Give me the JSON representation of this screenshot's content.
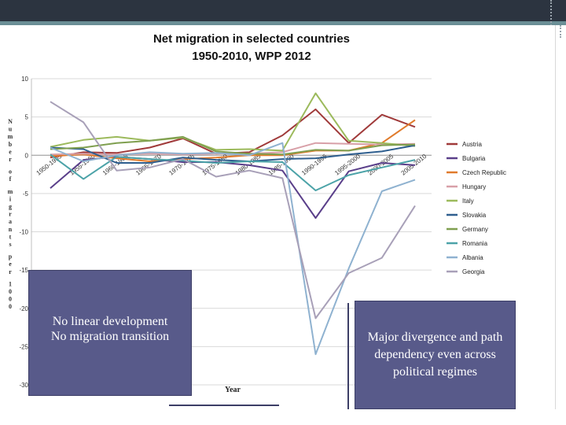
{
  "slide": {
    "callout_left_line1": "No linear development",
    "callout_left_line2": "No migration transition",
    "callout_right": "Major divergence and path dependency even across political regimes"
  },
  "chart_data": {
    "type": "line",
    "title_line1": "Net migration in selected countries",
    "title_line2": "1950-2010, WPP 2012",
    "xlabel": "Year",
    "ylabel": "Number of migrants per 1000",
    "ylim": [
      -30,
      10
    ],
    "yticks": [
      10,
      5,
      0,
      -5,
      -10,
      -15,
      -20,
      -25,
      -30
    ],
    "categories": [
      "1950-1955",
      "1955-1960",
      "1960-1965",
      "1965-1970",
      "1970-1975",
      "1975-1980",
      "1980-1985",
      "1985-1990",
      "1990-1995",
      "1995-2000",
      "2000-2005",
      "2005-2010"
    ],
    "legend_position": "right",
    "grid": true,
    "series": [
      {
        "name": "Austria",
        "color": "#a03a3a",
        "values": [
          -0.3,
          0.4,
          0.3,
          1.0,
          2.2,
          0.2,
          0.4,
          2.6,
          6.0,
          1.6,
          5.3,
          3.7
        ]
      },
      {
        "name": "Bulgaria",
        "color": "#5a3f8a",
        "values": [
          -4.3,
          -0.6,
          -0.2,
          -0.5,
          -0.9,
          -0.9,
          -1.3,
          -2.0,
          -8.2,
          -2.1,
          -1.0,
          -1.3
        ]
      },
      {
        "name": "Czech Republic",
        "color": "#e07b2c",
        "values": [
          -0.1,
          0.1,
          -0.4,
          -0.8,
          -0.5,
          -0.3,
          0.0,
          0.0,
          0.6,
          0.6,
          1.6,
          4.6
        ]
      },
      {
        "name": "Hungary",
        "color": "#d8a0a8",
        "values": [
          0.1,
          0.2,
          0.1,
          0.2,
          0.1,
          0.2,
          0.2,
          0.4,
          1.6,
          1.5,
          1.4,
          1.5
        ]
      },
      {
        "name": "Italy",
        "color": "#9cba5c",
        "values": [
          1.1,
          2.0,
          2.4,
          1.9,
          2.3,
          0.7,
          0.8,
          0.6,
          8.1,
          1.9,
          1.6,
          1.2
        ]
      },
      {
        "name": "Slovakia",
        "color": "#2f5f8f",
        "values": [
          1.0,
          0.8,
          -1.0,
          -1.0,
          -0.3,
          -0.6,
          -0.8,
          -0.5,
          -0.4,
          0.1,
          0.5,
          1.3
        ]
      },
      {
        "name": "Germany",
        "color": "#7f9f4f",
        "values": [
          0.8,
          1.0,
          1.6,
          1.9,
          2.4,
          0.5,
          0.2,
          0.1,
          0.7,
          0.6,
          1.3,
          1.4
        ]
      },
      {
        "name": "Romania",
        "color": "#4ca3a8",
        "values": [
          0.1,
          -3.1,
          -0.2,
          -0.5,
          -0.7,
          -1.0,
          -0.8,
          -0.9,
          -4.6,
          -2.6,
          -1.6,
          -0.6
        ]
      },
      {
        "name": "Albania",
        "color": "#8fb2d0",
        "values": [
          1.0,
          -0.8,
          0.0,
          0.4,
          0.2,
          0.3,
          0.0,
          1.6,
          -26.0,
          -14.8,
          -4.7,
          -3.2
        ]
      },
      {
        "name": "Georgia",
        "color": "#a8a0b8",
        "values": [
          7.0,
          4.3,
          -2.0,
          -1.6,
          -0.5,
          -2.8,
          -2.0,
          -3.0,
          -21.3,
          -15.4,
          -13.4,
          -6.6
        ]
      }
    ]
  }
}
